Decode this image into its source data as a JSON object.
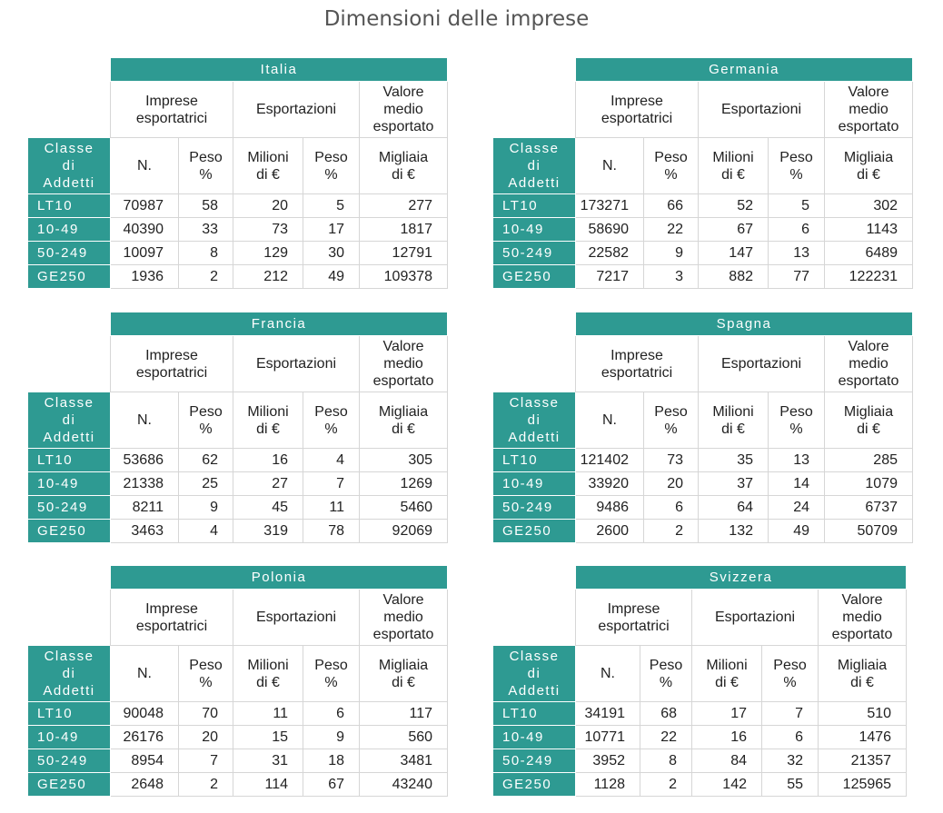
{
  "title": "Dimensioni delle imprese",
  "headers": {
    "imprese": "Impreseesportatrici",
    "imprese_l1": "Imprese",
    "imprese_l2": "esportatrici",
    "esportazioni": "Esportazioni",
    "valore_l1": "Valore",
    "valore_l2": "medio",
    "valore_l3": "esportato",
    "classe_l1": "Classe",
    "classe_l2": "di",
    "classe_l3": "Addetti",
    "n": "N.",
    "peso_l1": "Peso",
    "peso_l2": "%",
    "milioni_l1": "Milioni",
    "milioni_l2": "di €",
    "migliaia_l1": "Migliaia",
    "migliaia_l2": "di €"
  },
  "tables": [
    {
      "country": "Italia",
      "rows": [
        {
          "classe": "LT10",
          "n": "70987",
          "peso_n": "58",
          "milioni": "20",
          "peso_exp": "5",
          "valore": "277"
        },
        {
          "classe": "10-49",
          "n": "40390",
          "peso_n": "33",
          "milioni": "73",
          "peso_exp": "17",
          "valore": "1817"
        },
        {
          "classe": "50-249",
          "n": "10097",
          "peso_n": "8",
          "milioni": "129",
          "peso_exp": "30",
          "valore": "12791"
        },
        {
          "classe": "GE250",
          "n": "1936",
          "peso_n": "2",
          "milioni": "212",
          "peso_exp": "49",
          "valore": "109378"
        }
      ]
    },
    {
      "country": "Germania",
      "rows": [
        {
          "classe": "LT10",
          "n": "173271",
          "peso_n": "66",
          "milioni": "52",
          "peso_exp": "5",
          "valore": "302"
        },
        {
          "classe": "10-49",
          "n": "58690",
          "peso_n": "22",
          "milioni": "67",
          "peso_exp": "6",
          "valore": "1143"
        },
        {
          "classe": "50-249",
          "n": "22582",
          "peso_n": "9",
          "milioni": "147",
          "peso_exp": "13",
          "valore": "6489"
        },
        {
          "classe": "GE250",
          "n": "7217",
          "peso_n": "3",
          "milioni": "882",
          "peso_exp": "77",
          "valore": "122231"
        }
      ]
    },
    {
      "country": "Francia",
      "rows": [
        {
          "classe": "LT10",
          "n": "53686",
          "peso_n": "62",
          "milioni": "16",
          "peso_exp": "4",
          "valore": "305"
        },
        {
          "classe": "10-49",
          "n": "21338",
          "peso_n": "25",
          "milioni": "27",
          "peso_exp": "7",
          "valore": "1269"
        },
        {
          "classe": "50-249",
          "n": "8211",
          "peso_n": "9",
          "milioni": "45",
          "peso_exp": "11",
          "valore": "5460"
        },
        {
          "classe": "GE250",
          "n": "3463",
          "peso_n": "4",
          "milioni": "319",
          "peso_exp": "78",
          "valore": "92069"
        }
      ]
    },
    {
      "country": "Spagna",
      "rows": [
        {
          "classe": "LT10",
          "n": "121402",
          "peso_n": "73",
          "milioni": "35",
          "peso_exp": "13",
          "valore": "285"
        },
        {
          "classe": "10-49",
          "n": "33920",
          "peso_n": "20",
          "milioni": "37",
          "peso_exp": "14",
          "valore": "1079"
        },
        {
          "classe": "50-249",
          "n": "9486",
          "peso_n": "6",
          "milioni": "64",
          "peso_exp": "24",
          "valore": "6737"
        },
        {
          "classe": "GE250",
          "n": "2600",
          "peso_n": "2",
          "milioni": "132",
          "peso_exp": "49",
          "valore": "50709"
        }
      ]
    },
    {
      "country": "Polonia",
      "rows": [
        {
          "classe": "LT10",
          "n": "90048",
          "peso_n": "70",
          "milioni": "11",
          "peso_exp": "6",
          "valore": "117"
        },
        {
          "classe": "10-49",
          "n": "26176",
          "peso_n": "20",
          "milioni": "15",
          "peso_exp": "9",
          "valore": "560"
        },
        {
          "classe": "50-249",
          "n": "8954",
          "peso_n": "7",
          "milioni": "31",
          "peso_exp": "18",
          "valore": "3481"
        },
        {
          "classe": "GE250",
          "n": "2648",
          "peso_n": "2",
          "milioni": "114",
          "peso_exp": "67",
          "valore": "43240"
        }
      ]
    },
    {
      "country": "Svizzera",
      "rows": [
        {
          "classe": "LT10",
          "n": "34191",
          "peso_n": "68",
          "milioni": "17",
          "peso_exp": "7",
          "valore": "510"
        },
        {
          "classe": "10-49",
          "n": "10771",
          "peso_n": "22",
          "milioni": "16",
          "peso_exp": "6",
          "valore": "1476"
        },
        {
          "classe": "50-249",
          "n": "3952",
          "peso_n": "8",
          "milioni": "84",
          "peso_exp": "32",
          "valore": "21357"
        },
        {
          "classe": "GE250",
          "n": "1128",
          "peso_n": "2",
          "milioni": "142",
          "peso_exp": "55",
          "valore": "125965"
        }
      ]
    }
  ]
}
